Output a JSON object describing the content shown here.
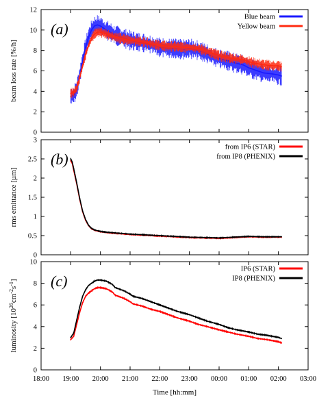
{
  "chart_data": [
    {
      "panel": "(a)",
      "type": "line",
      "ylabel": "beam loss rate [%/h]",
      "ylim": [
        0,
        12
      ],
      "yticks": [
        "0",
        "2",
        "4",
        "6",
        "8",
        "10",
        "12"
      ],
      "legend": "top-right",
      "series": [
        {
          "name": "Blue beam",
          "color": "#1a1aff",
          "x": [
            19.0,
            19.1,
            19.2,
            19.3,
            19.4,
            19.5,
            19.6,
            19.7,
            19.8,
            19.9,
            20.0,
            20.2,
            20.5,
            20.8,
            21.0,
            21.3,
            21.5,
            21.8,
            22.0,
            22.3,
            22.5,
            22.8,
            23.0,
            23.3,
            23.5,
            23.8,
            24.0,
            24.3,
            24.5,
            24.8,
            25.0,
            25.3,
            25.5,
            25.8,
            26.0,
            26.1
          ],
          "values": [
            3.5,
            3.6,
            4.2,
            5.5,
            7.0,
            8.3,
            9.3,
            10.0,
            10.4,
            10.5,
            10.4,
            10.0,
            9.5,
            9.2,
            9.0,
            8.8,
            8.7,
            8.5,
            8.3,
            8.2,
            8.2,
            8.1,
            8.2,
            8.0,
            7.8,
            7.4,
            7.2,
            7.0,
            6.8,
            6.6,
            6.3,
            6.0,
            5.8,
            5.7,
            5.6,
            5.5
          ]
        },
        {
          "name": "Yellow beam",
          "color": "#ff2a10",
          "x": [
            19.0,
            19.1,
            19.2,
            19.3,
            19.4,
            19.5,
            19.6,
            19.7,
            19.8,
            19.9,
            20.0,
            20.2,
            20.5,
            20.8,
            21.0,
            21.3,
            21.5,
            21.8,
            22.0,
            22.3,
            22.5,
            22.8,
            23.0,
            23.3,
            23.5,
            23.8,
            24.0,
            24.3,
            24.5,
            24.8,
            25.0,
            25.3,
            25.5,
            25.8,
            26.0,
            26.1
          ],
          "values": [
            3.8,
            3.9,
            4.3,
            5.3,
            6.5,
            7.6,
            8.5,
            9.2,
            9.6,
            9.8,
            9.8,
            9.6,
            9.3,
            9.1,
            9.0,
            8.9,
            8.8,
            8.6,
            8.5,
            8.4,
            8.4,
            8.3,
            8.3,
            8.2,
            8.0,
            7.7,
            7.5,
            7.3,
            7.2,
            7.1,
            6.9,
            6.7,
            6.6,
            6.5,
            6.5,
            6.4
          ]
        }
      ]
    },
    {
      "panel": "(b)",
      "type": "line",
      "ylabel": "rms emittance [µm]",
      "ylim": [
        0,
        3
      ],
      "yticks": [
        "0",
        "0.5",
        "1",
        "1.5",
        "2",
        "2.5",
        "3"
      ],
      "legend": "top-right",
      "series": [
        {
          "name": "from IP6 (STAR)",
          "color": "#ff0000",
          "x": [
            19.0,
            19.05,
            19.1,
            19.2,
            19.3,
            19.4,
            19.5,
            19.6,
            19.7,
            19.8,
            19.9,
            20.0,
            20.2,
            20.5,
            21.0,
            21.5,
            22.0,
            22.5,
            23.0,
            23.5,
            24.0,
            24.5,
            25.0,
            25.5,
            26.1
          ],
          "values": [
            2.45,
            2.38,
            2.2,
            1.85,
            1.45,
            1.12,
            0.9,
            0.76,
            0.68,
            0.64,
            0.62,
            0.6,
            0.58,
            0.56,
            0.53,
            0.51,
            0.49,
            0.47,
            0.45,
            0.44,
            0.43,
            0.45,
            0.47,
            0.46,
            0.46
          ]
        },
        {
          "name": "from IP8 (PHENIX)",
          "color": "#000000",
          "x": [
            19.0,
            19.05,
            19.1,
            19.2,
            19.3,
            19.4,
            19.5,
            19.6,
            19.7,
            19.8,
            19.9,
            20.0,
            20.2,
            20.5,
            21.0,
            21.5,
            22.0,
            22.5,
            23.0,
            23.5,
            24.0,
            24.5,
            25.0,
            25.5,
            26.1
          ],
          "values": [
            2.5,
            2.42,
            2.25,
            1.88,
            1.48,
            1.14,
            0.92,
            0.77,
            0.69,
            0.65,
            0.63,
            0.61,
            0.59,
            0.57,
            0.54,
            0.52,
            0.5,
            0.48,
            0.46,
            0.45,
            0.44,
            0.46,
            0.48,
            0.47,
            0.47
          ]
        }
      ]
    },
    {
      "panel": "(c)",
      "type": "line",
      "ylabel_main": "luminosity [10",
      "ylabel_sup1": "26",
      "ylabel_mid": "cm",
      "ylabel_sup2": "-2",
      "ylabel_s": "s",
      "ylabel_sup3": "-1",
      "ylabel_end": "]",
      "ylim": [
        0,
        10
      ],
      "yticks": [
        "0",
        "2",
        "4",
        "6",
        "8",
        "10"
      ],
      "legend": "top-right",
      "xlabel": "Time [hh:mm]",
      "xlim": [
        18,
        27
      ],
      "xticks": [
        "18:00",
        "19:00",
        "20:00",
        "21:00",
        "22:00",
        "23:00",
        "00:00",
        "01:00",
        "02:00",
        "03:00"
      ],
      "series": [
        {
          "name": "IP6 (STAR)",
          "color": "#ff0000",
          "x": [
            19.0,
            19.1,
            19.2,
            19.3,
            19.4,
            19.5,
            19.6,
            19.7,
            19.8,
            19.9,
            20.0,
            20.2,
            20.4,
            20.5,
            20.8,
            21.0,
            21.1,
            21.4,
            21.7,
            22.0,
            22.3,
            22.6,
            23.0,
            23.3,
            23.6,
            24.0,
            24.3,
            24.6,
            25.0,
            25.3,
            25.6,
            26.0,
            26.1
          ],
          "values": [
            2.8,
            3.1,
            4.2,
            5.3,
            6.2,
            6.8,
            7.1,
            7.3,
            7.5,
            7.6,
            7.6,
            7.5,
            7.2,
            6.9,
            6.6,
            6.3,
            6.1,
            5.9,
            5.6,
            5.4,
            5.1,
            4.8,
            4.5,
            4.2,
            4.0,
            3.7,
            3.5,
            3.3,
            3.1,
            2.9,
            2.8,
            2.6,
            2.5
          ]
        },
        {
          "name": "IP8 (PHENIX)",
          "color": "#000000",
          "x": [
            19.0,
            19.1,
            19.2,
            19.3,
            19.4,
            19.5,
            19.6,
            19.7,
            19.8,
            19.9,
            20.0,
            20.2,
            20.4,
            20.5,
            20.8,
            21.0,
            21.1,
            21.4,
            21.7,
            22.0,
            22.3,
            22.6,
            23.0,
            23.3,
            23.6,
            24.0,
            24.3,
            24.6,
            25.0,
            25.3,
            25.6,
            26.0,
            26.1
          ],
          "values": [
            3.0,
            3.4,
            4.6,
            5.8,
            6.8,
            7.4,
            7.8,
            8.0,
            8.2,
            8.3,
            8.3,
            8.2,
            7.9,
            7.6,
            7.3,
            7.0,
            6.8,
            6.6,
            6.3,
            6.0,
            5.7,
            5.4,
            5.1,
            4.8,
            4.5,
            4.2,
            3.9,
            3.7,
            3.5,
            3.3,
            3.2,
            3.0,
            2.9
          ]
        }
      ]
    }
  ]
}
